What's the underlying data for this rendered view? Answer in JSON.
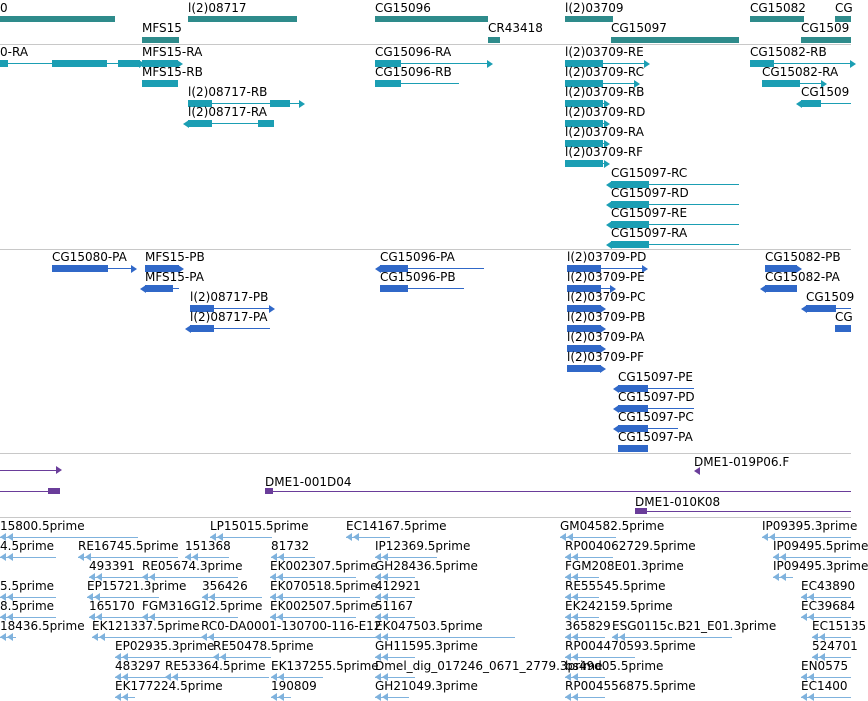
{
  "colors": {
    "gene": "#2e8b8b",
    "transcript_ann": "#1b9eb3",
    "transcript_pred": "#3068c8",
    "clone": "#6a3d9a",
    "est": "#7fb2dd",
    "separator": "#c8c8c8"
  },
  "gene_track": {
    "labels": [
      "0",
      "MFS15",
      "l(2)08717",
      "CG15096",
      "CR43418",
      "l(2)03709",
      "CG15097",
      "CG15082",
      "CG1509",
      "CG"
    ]
  },
  "transcript_track_a": {
    "labels": [
      "0-RA",
      "MFS15-RA",
      "MFS15-RB",
      "l(2)08717-RB",
      "l(2)08717-RA",
      "CG15096-RA",
      "CG15096-RB",
      "l(2)03709-RE",
      "l(2)03709-RC",
      "l(2)03709-RB",
      "l(2)03709-RD",
      "l(2)03709-RA",
      "l(2)03709-RF",
      "CG15097-RC",
      "CG15097-RD",
      "CG15097-RE",
      "CG15097-RA",
      "CG15082-RB",
      "CG15082-RA",
      "CG1509"
    ]
  },
  "transcript_track_b": {
    "labels": [
      "CG15080-PA",
      "MFS15-PB",
      "MFS15-PA",
      "l(2)08717-PB",
      "l(2)08717-PA",
      "CG15096-PA",
      "CG15096-PB",
      "l(2)03709-PD",
      "l(2)03709-PE",
      "l(2)03709-PC",
      "l(2)03709-PB",
      "l(2)03709-PA",
      "l(2)03709-PF",
      "CG15097-PE",
      "CG15097-PD",
      "CG15097-PC",
      "CG15097-PA",
      "CG15082-PB",
      "CG15082-PA",
      "CG1509",
      "CG"
    ]
  },
  "clone_track": {
    "labels": [
      "DME1-019P06.F",
      "DME1-001D04",
      "DME1-010K08"
    ]
  },
  "est_track": {
    "labels": [
      "15800.5prime",
      "LP15015.5prime",
      "EC14167.5prime",
      "GM04582.5prime",
      "IP09395.3prime",
      "4.5prime",
      "RE16745.5prime",
      "151368",
      "81732",
      "IP12369.5prime",
      "RP004062729.5prime",
      "IP09495.5prime",
      "493391",
      "RE05674.3prime",
      "EK002307.5prime",
      "GH28436.5prime",
      "FGM208E01.3prime",
      "IP09495.3prime",
      "5.5prime",
      "EP15721.3prime",
      "356426",
      "EK070518.5prime",
      "412921",
      "RE55545.5prime",
      "EC43890",
      "8.5prime",
      "165170",
      "FGM316G12.5prime",
      "EK002507.5prime",
      "51167",
      "EK242159.5prime",
      "EC39684",
      "18436.5prime",
      "EK121337.5prime",
      "RC0-DA0001-130700-116-E12",
      "EK047503.5prime",
      "365829",
      "ESG0115c.B21_E01.3prime",
      "EC15135",
      "EP02935.3prime",
      "RE50478.5prime",
      "GH11595.3prime",
      "RP004470593.5prime",
      "524701",
      "483297",
      "RE53364.5prime",
      "EK137255.5prime",
      "Dmel_dig_017246_0671_2779.3prime",
      "bs49d05.5prime",
      "EN0575",
      "EK177224.5prime",
      "190809",
      "GH21049.3prime",
      "RP004556875.5prime",
      "EC1400"
    ]
  }
}
